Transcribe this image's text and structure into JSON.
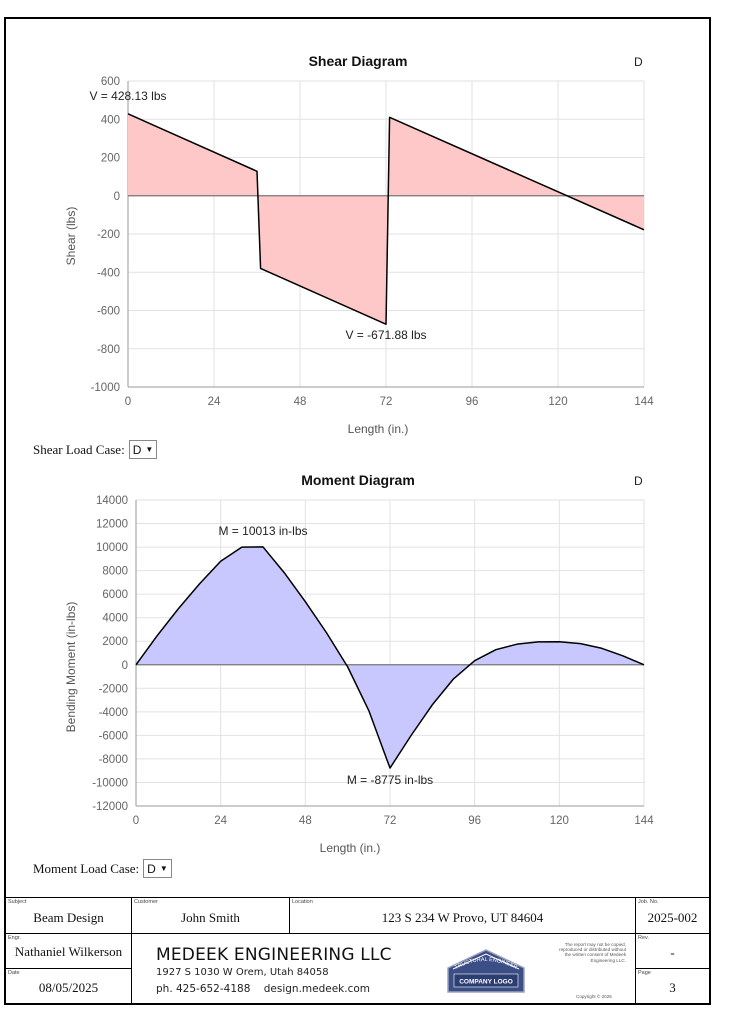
{
  "shear": {
    "title": "Shear Diagram",
    "case_tag": "D",
    "load_case_label": "Shear Load Case:",
    "load_case_value": "D",
    "chart_data": {
      "type": "area",
      "title": "Shear Diagram",
      "xlabel": "Length (in.)",
      "ylabel": "Shear (lbs)",
      "xlim": [
        0,
        144
      ],
      "ylim": [
        -1000,
        600
      ],
      "xticks": [
        0,
        24,
        48,
        72,
        96,
        120,
        144
      ],
      "yticks": [
        600,
        400,
        200,
        0,
        -200,
        -400,
        -600,
        -800,
        -1000
      ],
      "x": [
        0,
        36,
        37,
        72,
        73,
        144
      ],
      "y": [
        428.13,
        128,
        -380,
        -671.88,
        410,
        -178
      ],
      "annotations": [
        {
          "text": "V = 428.13 lbs",
          "x": 0,
          "y": 428.13
        },
        {
          "text": "V = -671.88 lbs",
          "x": 72,
          "y": -671.88
        }
      ]
    }
  },
  "moment": {
    "title": "Moment Diagram",
    "case_tag": "D",
    "load_case_label": "Moment Load Case:",
    "load_case_value": "D",
    "chart_data": {
      "type": "area",
      "title": "Moment Diagram",
      "xlabel": "Length (in.)",
      "ylabel": "Bending Moment (in-lbs)",
      "xlim": [
        0,
        144
      ],
      "ylim": [
        -12000,
        14000
      ],
      "xticks": [
        0,
        24,
        48,
        72,
        96,
        120,
        144
      ],
      "yticks": [
        14000,
        12000,
        10000,
        8000,
        6000,
        4000,
        2000,
        0,
        -2000,
        -4000,
        -6000,
        -8000,
        -10000,
        -12000
      ],
      "x": [
        0,
        6,
        12,
        18,
        24,
        30,
        36,
        42,
        48,
        54,
        60,
        66,
        72,
        78,
        84,
        90,
        96,
        102,
        108,
        114,
        120,
        126,
        132,
        138,
        144
      ],
      "y": [
        0,
        2470,
        4760,
        6870,
        8800,
        10000,
        10013,
        7830,
        5360,
        2720,
        -180,
        -3900,
        -8775,
        -6000,
        -3400,
        -1200,
        350,
        1280,
        1750,
        1950,
        1960,
        1800,
        1400,
        760,
        0
      ],
      "annotations": [
        {
          "text": "M = 10013 in-lbs",
          "x": 36,
          "y": 10013
        },
        {
          "text": "M = -8775 in-lbs",
          "x": 72,
          "y": -8775
        }
      ]
    }
  },
  "title_block": {
    "subject_caption": "Subject",
    "subject": "Beam Design",
    "customer_caption": "Customer",
    "customer": "John Smith",
    "location_caption": "Location",
    "location": "123 S 234 W Provo, UT 84604",
    "job_caption": "Job. No.",
    "job_no": "2025-002",
    "engr_caption": "Engr.",
    "engineer": "Nathaniel Wilkerson",
    "date_caption": "Date",
    "date": "08/05/2025",
    "rev_caption": "Rev.",
    "rev": "-",
    "page_caption": "Page",
    "page": "3",
    "company_name": "MEDEEK ENGINEERING LLC",
    "company_address": "1927 S 1030 W Orem, Utah 84058",
    "company_phone": "ph. 425-652-4188",
    "company_web": "design.medeek.com",
    "logo_arc_text": "STRUCTURAL ENGINEERS",
    "logo_text": "COMPANY LOGO",
    "notice": "The report may not be copied, reproduced or distributed without the written consent of Medeek Engineering LLC.",
    "copyright": "Copyright © 2025"
  }
}
